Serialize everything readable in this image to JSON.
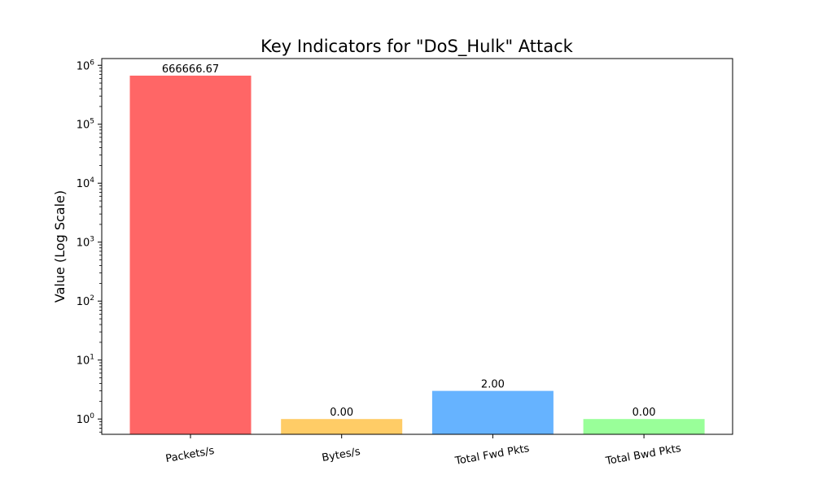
{
  "chart_data": {
    "type": "bar",
    "title": "Key Indicators for \"DoS_Hulk\" Attack",
    "xlabel": "",
    "ylabel": "Value (Log Scale)",
    "yscale": "log",
    "ylim": [
      0.55,
      1300000
    ],
    "yticks": [
      {
        "value": 1,
        "base": "10",
        "exp": "0"
      },
      {
        "value": 10,
        "base": "10",
        "exp": "1"
      },
      {
        "value": 100,
        "base": "10",
        "exp": "2"
      },
      {
        "value": 1000,
        "base": "10",
        "exp": "3"
      },
      {
        "value": 10000,
        "base": "10",
        "exp": "4"
      },
      {
        "value": 100000,
        "base": "10",
        "exp": "5"
      },
      {
        "value": 1000000,
        "base": "10",
        "exp": "6"
      }
    ],
    "categories": [
      "Packets/s",
      "Bytes/s",
      "Total Fwd Pkts",
      "Total Bwd Pkts"
    ],
    "values": [
      666666.67,
      1,
      3,
      1
    ],
    "data_labels": [
      "666666.67",
      "0.00",
      "2.00",
      "0.00"
    ],
    "colors": [
      "#ff6666",
      "#ffcc66",
      "#66b3ff",
      "#99ff99"
    ],
    "xtick_rotation_deg": -10,
    "grid": false,
    "legend": "none"
  }
}
